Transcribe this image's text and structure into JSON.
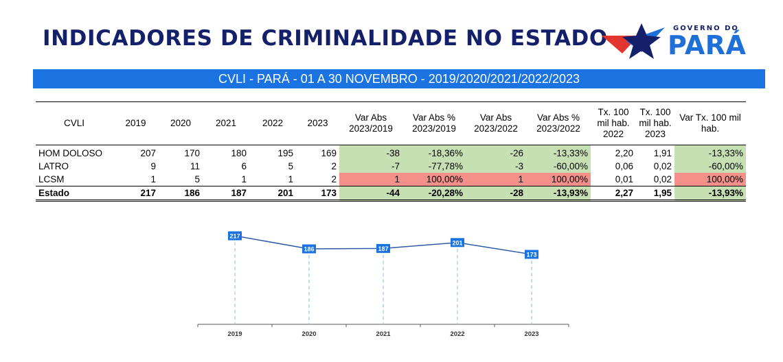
{
  "header": {
    "title": "INDICADORES DE CRIMINALIDADE NO ESTADO",
    "logo_top": "GOVERNO DO",
    "logo_main": "PARÁ"
  },
  "banner": {
    "text": "CVLI - PARÁ - 01 A 30 NOVEMBRO  - 2019/2020/2021/2022/2023"
  },
  "table": {
    "headers": [
      "CVLI",
      "2019",
      "2020",
      "2021",
      "2022",
      "2023",
      "Var Abs 2023/2019",
      "Var Abs % 2023/2019",
      "Var Abs 2023/2022",
      "Var Abs % 2023/2022",
      "Tx. 100 mil hab. 2022",
      "Tx. 100 mil hab. 2023",
      "Var Tx. 100 mil hab."
    ],
    "rows": [
      {
        "name": "HOM DOLOSO",
        "cells": [
          "207",
          "170",
          "180",
          "195",
          "169",
          "-38",
          "-18,36%",
          "-26",
          "-13,33%",
          "2,20",
          "1,91",
          "-13,33%"
        ]
      },
      {
        "name": "LATRO",
        "cells": [
          "9",
          "11",
          "6",
          "5",
          "2",
          "-7",
          "-77,78%",
          "-3",
          "-60,00%",
          "0,06",
          "0,02",
          "-60,00%"
        ]
      },
      {
        "name": "LCSM",
        "cells": [
          "1",
          "5",
          "1",
          "1",
          "2",
          "1",
          "100,00%",
          "1",
          "100,00%",
          "0,01",
          "0,02",
          "100,00%"
        ]
      },
      {
        "name": "Estado",
        "cells": [
          "217",
          "186",
          "187",
          "201",
          "173",
          "-44",
          "-20,28%",
          "-28",
          "-13,93%",
          "2,27",
          "1,95",
          "-13,93%"
        ]
      }
    ]
  },
  "colors": {
    "title": "#15206b",
    "banner": "#1a73e0",
    "positive_var": "#c6e0b4",
    "negative_var": "#f4908a",
    "chart_line": "#2e5aa8",
    "chart_label_bg": "#1a73e0"
  },
  "chart_data": {
    "type": "line",
    "categories": [
      "2019",
      "2020",
      "2021",
      "2022",
      "2023"
    ],
    "series": [
      {
        "values": [
          217,
          186,
          187,
          201,
          173
        ]
      }
    ],
    "data_labels": true,
    "ylim": [
      0,
      230
    ],
    "grid": false
  }
}
